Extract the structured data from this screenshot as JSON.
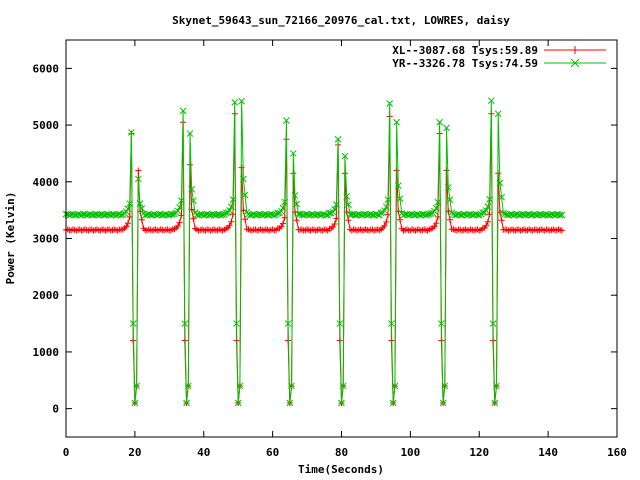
{
  "chart_data": {
    "type": "line",
    "title": "Skynet_59643_sun_72166_20976_cal.txt, LOWRES, daisy",
    "xlabel": "Time(Seconds)",
    "ylabel": "Power (Kelvin)",
    "xlim": [
      0,
      160
    ],
    "ylim": [
      -500,
      6500
    ],
    "xticks": [
      0,
      20,
      40,
      60,
      80,
      100,
      120,
      140,
      160
    ],
    "yticks": [
      0,
      1000,
      2000,
      3000,
      4000,
      5000,
      6000
    ],
    "grid": false,
    "legend_position": "top-right",
    "series": [
      {
        "name": "XL--3087.68 Tsys:59.89",
        "color": "#ff0000",
        "marker": "plus",
        "baseline": 3150,
        "x_end": 144,
        "passes": [
          {
            "t": 19.5,
            "peak": 4850,
            "bump": 4200
          },
          {
            "t": 34.5,
            "peak": 5050,
            "bump": 4300
          },
          {
            "t": 49.5,
            "peak": 5200,
            "bump": 4250
          },
          {
            "t": 64.5,
            "peak": 4750,
            "bump": 4150
          },
          {
            "t": 79.5,
            "peak": 4650,
            "bump": 4150
          },
          {
            "t": 94.5,
            "peak": 5150,
            "bump": 4200
          },
          {
            "t": 109.0,
            "peak": 4850,
            "bump": 4200
          },
          {
            "t": 124.0,
            "peak": 5200,
            "bump": 4150
          }
        ]
      },
      {
        "name": "YR--3326.78 Tsys:74.59",
        "color": "#00c000",
        "marker": "cross",
        "baseline": 3420,
        "x_end": 144,
        "passes": [
          {
            "t": 19.5,
            "peak": 4870,
            "bump": 4050
          },
          {
            "t": 34.5,
            "peak": 5250,
            "bump": 4850
          },
          {
            "t": 49.5,
            "peak": 5400,
            "bump": 5420
          },
          {
            "t": 64.5,
            "peak": 5080,
            "bump": 4500
          },
          {
            "t": 79.5,
            "peak": 4750,
            "bump": 4450
          },
          {
            "t": 94.5,
            "peak": 5380,
            "bump": 5050
          },
          {
            "t": 109.0,
            "peak": 5050,
            "bump": 4950
          },
          {
            "t": 124.0,
            "peak": 5430,
            "bump": 5200
          }
        ]
      }
    ]
  }
}
